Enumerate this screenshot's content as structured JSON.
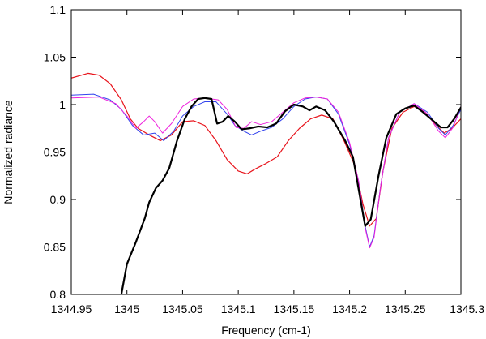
{
  "chart_data": {
    "type": "line",
    "title": "",
    "xlabel": "Frequency (cm-1)",
    "ylabel": "Normalized radiance",
    "xlim": [
      1344.95,
      1345.3
    ],
    "ylim": [
      0.8,
      1.1
    ],
    "x_ticks": [
      1344.95,
      1345,
      1345.05,
      1345.1,
      1345.15,
      1345.2,
      1345.25,
      1345.3
    ],
    "x_tick_labels": [
      "1344.95",
      "1345",
      "1345.05",
      "1345.1",
      "1345.15",
      "1345.2",
      "1345.25",
      "1345.3"
    ],
    "y_ticks": [
      0.8,
      0.85,
      0.9,
      0.95,
      1,
      1.05,
      1.1
    ],
    "y_tick_labels": [
      "0.8",
      "0.85",
      "0.9",
      "0.95",
      "1",
      "1.05",
      "1.1"
    ],
    "grid": false,
    "legend": "none",
    "series": [
      {
        "color": "#e8141c",
        "stroke_width": 1.2,
        "points": [
          [
            1344.95,
            1.028
          ],
          [
            1344.965,
            1.033
          ],
          [
            1344.975,
            1.031
          ],
          [
            1344.985,
            1.022
          ],
          [
            1344.995,
            1.005
          ],
          [
            1345.003,
            0.985
          ],
          [
            1345.01,
            0.975
          ],
          [
            1345.02,
            0.968
          ],
          [
            1345.03,
            0.962
          ],
          [
            1345.04,
            0.968
          ],
          [
            1345.05,
            0.982
          ],
          [
            1345.06,
            0.983
          ],
          [
            1345.07,
            0.978
          ],
          [
            1345.08,
            0.962
          ],
          [
            1345.09,
            0.942
          ],
          [
            1345.1,
            0.93
          ],
          [
            1345.108,
            0.927
          ],
          [
            1345.115,
            0.932
          ],
          [
            1345.125,
            0.938
          ],
          [
            1345.135,
            0.945
          ],
          [
            1345.145,
            0.962
          ],
          [
            1345.155,
            0.975
          ],
          [
            1345.165,
            0.985
          ],
          [
            1345.175,
            0.989
          ],
          [
            1345.185,
            0.985
          ],
          [
            1345.195,
            0.962
          ],
          [
            1345.205,
            0.935
          ],
          [
            1345.212,
            0.895
          ],
          [
            1345.218,
            0.872
          ],
          [
            1345.224,
            0.88
          ],
          [
            1345.23,
            0.93
          ],
          [
            1345.238,
            0.975
          ],
          [
            1345.248,
            0.992
          ],
          [
            1345.258,
            0.998
          ],
          [
            1345.268,
            0.992
          ],
          [
            1345.278,
            0.978
          ],
          [
            1345.285,
            0.97
          ],
          [
            1345.292,
            0.975
          ],
          [
            1345.3,
            0.985
          ]
        ]
      },
      {
        "color": "#3344ee",
        "stroke_width": 1,
        "points": [
          [
            1344.95,
            1.01
          ],
          [
            1344.97,
            1.011
          ],
          [
            1344.985,
            1.005
          ],
          [
            1344.995,
            0.995
          ],
          [
            1345.005,
            0.978
          ],
          [
            1345.015,
            0.968
          ],
          [
            1345.025,
            0.97
          ],
          [
            1345.033,
            0.962
          ],
          [
            1345.042,
            0.972
          ],
          [
            1345.05,
            0.988
          ],
          [
            1345.06,
            0.998
          ],
          [
            1345.07,
            1.003
          ],
          [
            1345.08,
            1.003
          ],
          [
            1345.09,
            0.99
          ],
          [
            1345.097,
            0.978
          ],
          [
            1345.105,
            0.972
          ],
          [
            1345.112,
            0.968
          ],
          [
            1345.12,
            0.972
          ],
          [
            1345.13,
            0.976
          ],
          [
            1345.14,
            0.985
          ],
          [
            1345.15,
            0.998
          ],
          [
            1345.16,
            1.006
          ],
          [
            1345.17,
            1.008
          ],
          [
            1345.18,
            1.006
          ],
          [
            1345.19,
            0.99
          ],
          [
            1345.2,
            0.958
          ],
          [
            1345.208,
            0.92
          ],
          [
            1345.214,
            0.872
          ],
          [
            1345.218,
            0.85
          ],
          [
            1345.222,
            0.862
          ],
          [
            1345.228,
            0.915
          ],
          [
            1345.235,
            0.965
          ],
          [
            1345.245,
            0.992
          ],
          [
            1345.258,
            1.001
          ],
          [
            1345.27,
            0.992
          ],
          [
            1345.28,
            0.975
          ],
          [
            1345.286,
            0.968
          ],
          [
            1345.293,
            0.978
          ],
          [
            1345.3,
            0.995
          ]
        ]
      },
      {
        "color": "#ee22dd",
        "stroke_width": 1,
        "points": [
          [
            1344.95,
            1.007
          ],
          [
            1344.975,
            1.008
          ],
          [
            1344.99,
            1.001
          ],
          [
            1345.0,
            0.988
          ],
          [
            1345.008,
            0.975
          ],
          [
            1345.015,
            0.982
          ],
          [
            1345.02,
            0.988
          ],
          [
            1345.025,
            0.982
          ],
          [
            1345.032,
            0.97
          ],
          [
            1345.04,
            0.98
          ],
          [
            1345.05,
            0.998
          ],
          [
            1345.06,
            1.006
          ],
          [
            1345.07,
            1.007
          ],
          [
            1345.082,
            1.005
          ],
          [
            1345.09,
            0.995
          ],
          [
            1345.098,
            0.976
          ],
          [
            1345.105,
            0.975
          ],
          [
            1345.112,
            0.982
          ],
          [
            1345.12,
            0.979
          ],
          [
            1345.13,
            0.982
          ],
          [
            1345.14,
            0.992
          ],
          [
            1345.15,
            1.002
          ],
          [
            1345.16,
            1.007
          ],
          [
            1345.17,
            1.008
          ],
          [
            1345.18,
            1.006
          ],
          [
            1345.19,
            0.992
          ],
          [
            1345.2,
            0.96
          ],
          [
            1345.208,
            0.92
          ],
          [
            1345.214,
            0.87
          ],
          [
            1345.218,
            0.849
          ],
          [
            1345.222,
            0.86
          ],
          [
            1345.228,
            0.915
          ],
          [
            1345.235,
            0.965
          ],
          [
            1345.245,
            0.992
          ],
          [
            1345.258,
            1.001
          ],
          [
            1345.27,
            0.99
          ],
          [
            1345.28,
            0.972
          ],
          [
            1345.286,
            0.965
          ],
          [
            1345.293,
            0.976
          ],
          [
            1345.3,
            0.998
          ]
        ]
      },
      {
        "color": "#000000",
        "stroke_width": 2.2,
        "points": [
          [
            1344.995,
            0.8
          ],
          [
            1345.0,
            0.832
          ],
          [
            1345.008,
            0.855
          ],
          [
            1345.016,
            0.88
          ],
          [
            1345.02,
            0.897
          ],
          [
            1345.026,
            0.912
          ],
          [
            1345.032,
            0.92
          ],
          [
            1345.038,
            0.933
          ],
          [
            1345.045,
            0.962
          ],
          [
            1345.052,
            0.985
          ],
          [
            1345.058,
            0.998
          ],
          [
            1345.064,
            1.006
          ],
          [
            1345.07,
            1.007
          ],
          [
            1345.076,
            1.006
          ],
          [
            1345.081,
            0.98
          ],
          [
            1345.086,
            0.982
          ],
          [
            1345.091,
            0.988
          ],
          [
            1345.097,
            0.982
          ],
          [
            1345.103,
            0.974
          ],
          [
            1345.11,
            0.975
          ],
          [
            1345.118,
            0.977
          ],
          [
            1345.126,
            0.976
          ],
          [
            1345.134,
            0.98
          ],
          [
            1345.142,
            0.993
          ],
          [
            1345.15,
            1.0
          ],
          [
            1345.158,
            0.998
          ],
          [
            1345.164,
            0.994
          ],
          [
            1345.17,
            0.998
          ],
          [
            1345.178,
            0.994
          ],
          [
            1345.186,
            0.982
          ],
          [
            1345.196,
            0.962
          ],
          [
            1345.203,
            0.945
          ],
          [
            1345.209,
            0.905
          ],
          [
            1345.214,
            0.872
          ],
          [
            1345.219,
            0.879
          ],
          [
            1345.226,
            0.925
          ],
          [
            1345.233,
            0.965
          ],
          [
            1345.242,
            0.99
          ],
          [
            1345.25,
            0.996
          ],
          [
            1345.258,
            0.999
          ],
          [
            1345.266,
            0.992
          ],
          [
            1345.274,
            0.984
          ],
          [
            1345.282,
            0.976
          ],
          [
            1345.288,
            0.976
          ],
          [
            1345.294,
            0.985
          ],
          [
            1345.3,
            0.997
          ]
        ]
      }
    ]
  }
}
